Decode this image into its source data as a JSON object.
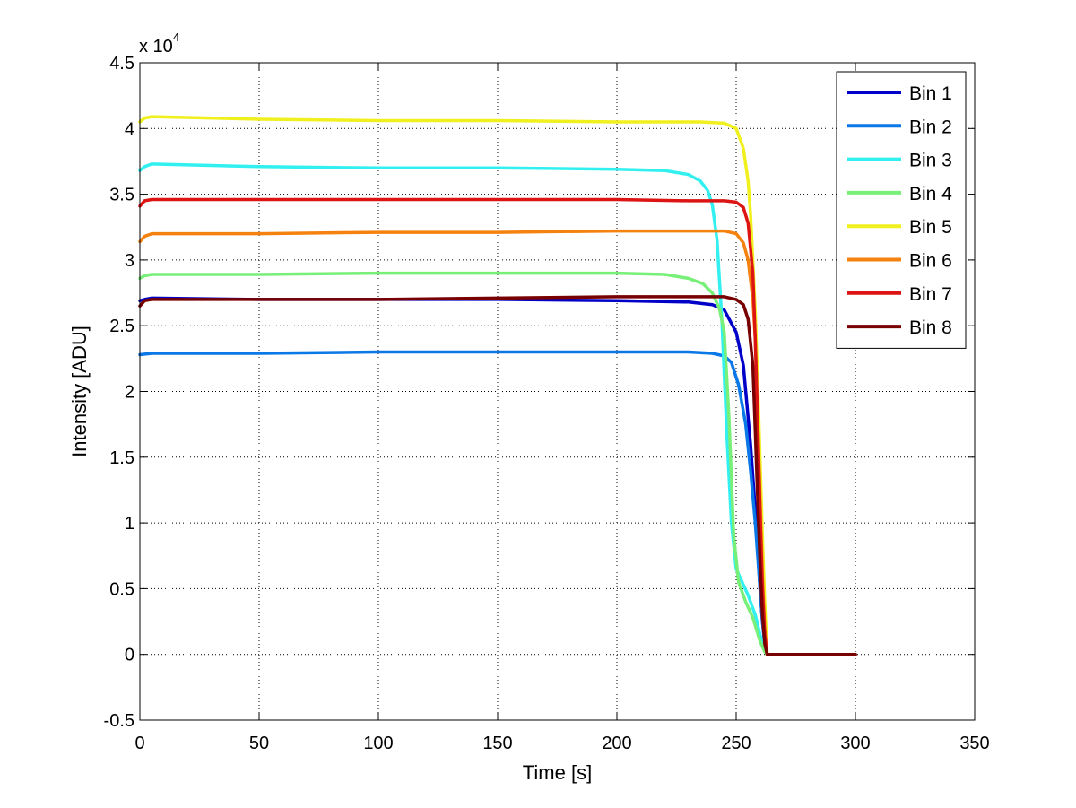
{
  "chart_data": {
    "type": "line",
    "title": "",
    "xlabel": "Time [s]",
    "ylabel": "Intensity [ADU]",
    "y_multiplier_label": "x 10",
    "y_multiplier_exponent": "4",
    "xlim": [
      0,
      350
    ],
    "ylim": [
      -5000,
      45000
    ],
    "xticks": [
      0,
      50,
      100,
      150,
      200,
      250,
      300,
      350
    ],
    "yticks": [
      -5000,
      0,
      5000,
      10000,
      15000,
      20000,
      25000,
      30000,
      35000,
      40000,
      45000
    ],
    "xtick_labels": [
      "0",
      "50",
      "100",
      "150",
      "200",
      "250",
      "300",
      "350"
    ],
    "ytick_labels": [
      "-0.5",
      "0",
      "0.5",
      "1",
      "1.5",
      "2",
      "2.5",
      "3",
      "3.5",
      "4",
      "4.5"
    ],
    "grid": true,
    "legend_position": "top-right",
    "series": [
      {
        "name": "Bin 1",
        "color": "#0000c8",
        "x": [
          0,
          2,
          5,
          50,
          100,
          150,
          200,
          230,
          240,
          245,
          250,
          253,
          256,
          258,
          260,
          261,
          262,
          263,
          265,
          300
        ],
        "y": [
          26900,
          27000,
          27100,
          27000,
          27000,
          27000,
          26900,
          26800,
          26600,
          26200,
          24500,
          22000,
          16000,
          11000,
          5000,
          2500,
          800,
          0,
          0,
          0
        ]
      },
      {
        "name": "Bin 2",
        "color": "#0a78e6",
        "x": [
          0,
          5,
          50,
          100,
          150,
          200,
          230,
          240,
          245,
          248,
          251,
          254,
          256,
          258,
          260,
          261,
          262,
          263,
          265,
          300
        ],
        "y": [
          22800,
          22900,
          22900,
          23000,
          23000,
          23000,
          23000,
          22900,
          22700,
          22200,
          20500,
          17500,
          14000,
          10000,
          5000,
          2500,
          800,
          0,
          0,
          0
        ]
      },
      {
        "name": "Bin 3",
        "color": "#32f0f0",
        "x": [
          0,
          2,
          5,
          50,
          100,
          150,
          200,
          220,
          230,
          235,
          238,
          240,
          242,
          244,
          246,
          248,
          250,
          255,
          258,
          260,
          262,
          263,
          265,
          300
        ],
        "y": [
          36800,
          37100,
          37300,
          37100,
          37000,
          37000,
          36900,
          36800,
          36500,
          36000,
          35300,
          34200,
          31500,
          25500,
          17000,
          10000,
          6500,
          4500,
          3000,
          1500,
          300,
          0,
          0,
          0
        ]
      },
      {
        "name": "Bin 4",
        "color": "#78f078",
        "x": [
          0,
          2,
          5,
          50,
          100,
          150,
          200,
          220,
          230,
          236,
          240,
          243,
          245,
          247,
          249,
          251,
          254,
          257,
          260,
          262,
          263,
          265,
          300
        ],
        "y": [
          28600,
          28800,
          28900,
          28900,
          29000,
          29000,
          29000,
          28900,
          28600,
          28200,
          27500,
          26300,
          24500,
          18000,
          9000,
          5500,
          4000,
          2800,
          1000,
          200,
          0,
          0,
          0
        ]
      },
      {
        "name": "Bin 5",
        "color": "#f0f01e",
        "x": [
          0,
          2,
          5,
          50,
          100,
          150,
          200,
          235,
          245,
          250,
          253,
          255,
          256,
          257,
          258,
          259,
          260,
          261,
          262,
          263,
          265,
          300
        ],
        "y": [
          40500,
          40800,
          40900,
          40700,
          40600,
          40600,
          40500,
          40500,
          40400,
          40000,
          38500,
          36000,
          33500,
          30000,
          26000,
          21000,
          15000,
          9000,
          4000,
          0,
          0,
          0
        ]
      },
      {
        "name": "Bin 6",
        "color": "#f5820f",
        "x": [
          0,
          2,
          5,
          50,
          100,
          150,
          200,
          230,
          245,
          250,
          253,
          255,
          257,
          258,
          259,
          260,
          261,
          262,
          263,
          265,
          300
        ],
        "y": [
          31400,
          31800,
          32000,
          32000,
          32100,
          32100,
          32200,
          32200,
          32200,
          32000,
          31300,
          30000,
          27000,
          24000,
          18000,
          12000,
          6000,
          2000,
          0,
          0,
          0
        ]
      },
      {
        "name": "Bin 7",
        "color": "#dc1414",
        "x": [
          0,
          2,
          5,
          50,
          100,
          150,
          200,
          230,
          245,
          250,
          253,
          255,
          257,
          258,
          259,
          260,
          261,
          262,
          263,
          265,
          300
        ],
        "y": [
          34100,
          34500,
          34600,
          34600,
          34600,
          34600,
          34600,
          34500,
          34500,
          34400,
          34000,
          32800,
          29000,
          24000,
          18000,
          11000,
          5000,
          1500,
          0,
          0,
          0
        ]
      },
      {
        "name": "Bin 8",
        "color": "#780000",
        "x": [
          0,
          2,
          5,
          50,
          100,
          150,
          200,
          230,
          245,
          250,
          253,
          255,
          257,
          258,
          259,
          260,
          261,
          262,
          263,
          265,
          300
        ],
        "y": [
          26500,
          26900,
          27000,
          27000,
          27000,
          27100,
          27200,
          27200,
          27200,
          27000,
          26600,
          25500,
          22000,
          17000,
          12000,
          7000,
          3000,
          800,
          0,
          0,
          0
        ]
      }
    ]
  }
}
